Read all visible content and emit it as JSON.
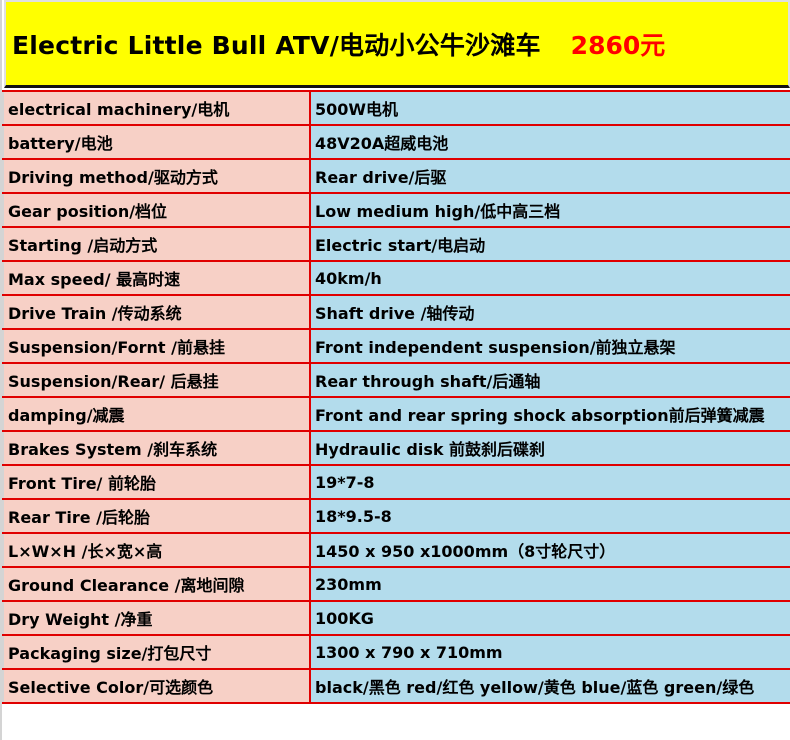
{
  "header": {
    "title": "Electric Little Bull ATV/电动小公牛沙滩车",
    "price": "2860元"
  },
  "specs": [
    {
      "label": "electrical machinery/电机",
      "value": "500W电机"
    },
    {
      "label": "battery/电池",
      "value": "48V20A超威电池"
    },
    {
      "label": "Driving method/驱动方式",
      "value": "Rear drive/后驱"
    },
    {
      "label": "Gear position/档位",
      "value": "Low medium high/低中高三档"
    },
    {
      "label": "Starting /启动方式",
      "value": "Electric start/电启动"
    },
    {
      "label": "Max speed/ 最高时速",
      "value": "40km/h"
    },
    {
      "label": "Drive Train /传动系统",
      "value": "Shaft drive /轴传动"
    },
    {
      "label": "Suspension/Fornt /前悬挂",
      "value": "Front independent suspension/前独立悬架"
    },
    {
      "label": "Suspension/Rear/ 后悬挂",
      "value": "Rear through shaft/后通轴"
    },
    {
      "label": "damping/减震",
      "value": "Front and rear spring shock absorption前后弹簧减震"
    },
    {
      "label": "Brakes System /刹车系统",
      "value": "Hydraulic disk 前鼓刹后碟刹"
    },
    {
      "label": "Front Tire/ 前轮胎",
      "value": "19*7-8"
    },
    {
      "label": "Rear Tire /后轮胎",
      "value": "18*9.5-8"
    },
    {
      "label": "L×W×H /长×宽×高",
      "value": "1450 x 950 x1000mm（8寸轮尺寸）"
    },
    {
      "label": "Ground Clearance /离地间隙",
      "value": "230mm"
    },
    {
      "label": "Dry Weight /净重",
      "value": "100KG"
    },
    {
      "label": "Packaging size/打包尺寸",
      "value": "1300 x 790 x 710mm"
    },
    {
      "label": "Selective Color/可选颜色",
      "value": "black/黑色 red/红色 yellow/黄色 blue/蓝色 green/绿色"
    }
  ]
}
